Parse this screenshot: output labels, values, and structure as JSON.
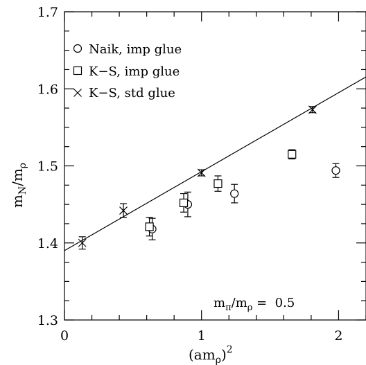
{
  "chart_data": {
    "type": "scatter",
    "xlabel": "(amρ)²",
    "ylabel": "mN/mρ",
    "xlabel_parts": {
      "base": "(am",
      "sub": "ρ",
      "close": ")",
      "sup": "2"
    },
    "ylabel_parts": {
      "m1": "m",
      "sub1": "N",
      "slash": "/m",
      "sub2": "ρ"
    },
    "xlim": [
      0,
      2.2
    ],
    "ylim": [
      1.3,
      1.7
    ],
    "x_ticks": [
      {
        "value": 0,
        "label": "0"
      },
      {
        "value": 1,
        "label": "1"
      },
      {
        "value": 2,
        "label": "2"
      }
    ],
    "y_ticks": [
      {
        "value": 1.3,
        "label": "1.3"
      },
      {
        "value": 1.4,
        "label": "1.4"
      },
      {
        "value": 1.5,
        "label": "1.5"
      },
      {
        "value": 1.6,
        "label": "1.6"
      },
      {
        "value": 1.7,
        "label": "1.7"
      }
    ],
    "x_minor_step": 0.2,
    "y_minor_step": 0.025,
    "grid": false,
    "legend_position": "top-left",
    "series": [
      {
        "name": "Naik, imp glue",
        "marker": "circle",
        "points": [
          {
            "x": 0.64,
            "y": 1.418,
            "err": 0.014
          },
          {
            "x": 0.9,
            "y": 1.45,
            "err": 0.016
          },
          {
            "x": 1.24,
            "y": 1.464,
            "err": 0.012
          },
          {
            "x": 1.98,
            "y": 1.494,
            "err": 0.009
          }
        ]
      },
      {
        "name": "K−S, imp glue",
        "marker": "square",
        "points": [
          {
            "x": 0.62,
            "y": 1.421,
            "err": 0.012
          },
          {
            "x": 0.87,
            "y": 1.452,
            "err": 0.012
          },
          {
            "x": 1.12,
            "y": 1.477,
            "err": 0.01
          },
          {
            "x": 1.66,
            "y": 1.515,
            "err": 0.006
          }
        ]
      },
      {
        "name": "K−S, std glue",
        "marker": "cross",
        "points": [
          {
            "x": 0.13,
            "y": 1.4,
            "err": 0.008
          },
          {
            "x": 0.43,
            "y": 1.442,
            "err": 0.009
          },
          {
            "x": 1.0,
            "y": 1.491,
            "err": 0.004
          },
          {
            "x": 1.81,
            "y": 1.573,
            "err": 0.004
          }
        ]
      }
    ],
    "fit_line": {
      "x": [
        0,
        2.2
      ],
      "y": [
        1.39,
        1.6155
      ]
    },
    "annotation": {
      "m1": "m",
      "sub1": "π",
      "slash": "/m",
      "sub2": "ρ",
      "rest": " =  0.5"
    }
  }
}
